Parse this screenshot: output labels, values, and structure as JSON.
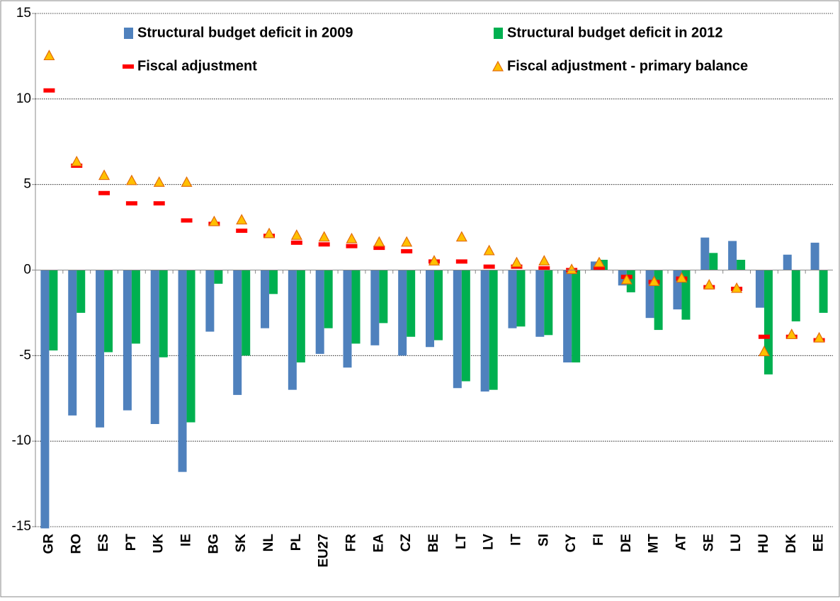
{
  "chart_data": {
    "type": "bar",
    "categories": [
      "GR",
      "RO",
      "ES",
      "PT",
      "UK",
      "IE",
      "BG",
      "SK",
      "NL",
      "PL",
      "EU27",
      "FR",
      "EA",
      "CZ",
      "BE",
      "LT",
      "LV",
      "IT",
      "SI",
      "CY",
      "FI",
      "DE",
      "MT",
      "AT",
      "SE",
      "LU",
      "HU",
      "DK",
      "EE"
    ],
    "series": [
      {
        "name": "Structural budget deficit in 2009",
        "color": "#4f81bd",
        "marker": "bar",
        "values": [
          -15.1,
          -8.5,
          -9.2,
          -8.2,
          -9.0,
          -11.8,
          -3.6,
          -7.3,
          -3.4,
          -7.0,
          -4.9,
          -5.7,
          -4.4,
          -5.0,
          -4.5,
          -6.9,
          -7.1,
          -3.4,
          -3.9,
          -5.4,
          0.5,
          -0.9,
          -2.8,
          -2.3,
          1.9,
          1.7,
          -2.2,
          0.9,
          1.6
        ]
      },
      {
        "name": "Structural budget deficit in 2012",
        "color": "#00b050",
        "marker": "bar",
        "values": [
          -4.7,
          -2.5,
          -4.8,
          -4.3,
          -5.1,
          -8.9,
          -0.8,
          -5.0,
          -1.4,
          -5.4,
          -3.4,
          -4.3,
          -3.1,
          -3.9,
          -4.1,
          -6.5,
          -7.0,
          -3.3,
          -3.8,
          -5.4,
          0.6,
          -1.3,
          -3.5,
          -2.9,
          1.0,
          0.6,
          -6.1,
          -3.0,
          -2.5
        ]
      },
      {
        "name": "Fiscal adjustment",
        "color": "#ff0000",
        "marker": "dash",
        "values": [
          10.5,
          6.1,
          4.5,
          3.9,
          3.9,
          2.9,
          2.7,
          2.3,
          2.0,
          1.6,
          1.5,
          1.4,
          1.3,
          1.1,
          0.5,
          0.5,
          0.2,
          0.2,
          0.1,
          0.0,
          0.1,
          -0.4,
          -0.7,
          -0.5,
          -1.0,
          -1.1,
          -3.9,
          -3.9,
          -4.1
        ]
      },
      {
        "name": "Fiscal adjustment - primary balance",
        "color": "#ffc000",
        "marker": "triangle",
        "values": [
          12.5,
          6.3,
          5.5,
          5.2,
          5.1,
          5.1,
          2.8,
          2.9,
          2.1,
          2.0,
          1.9,
          1.8,
          1.6,
          1.6,
          0.5,
          1.9,
          1.1,
          0.4,
          0.5,
          0.0,
          0.4,
          -0.6,
          -0.7,
          -0.5,
          -0.9,
          -1.1,
          -4.8,
          -3.8,
          -4.0
        ]
      }
    ],
    "ylim": [
      -15,
      15
    ],
    "yticks": [
      -15,
      -10,
      -5,
      0,
      5,
      10,
      15
    ],
    "grid": true
  }
}
